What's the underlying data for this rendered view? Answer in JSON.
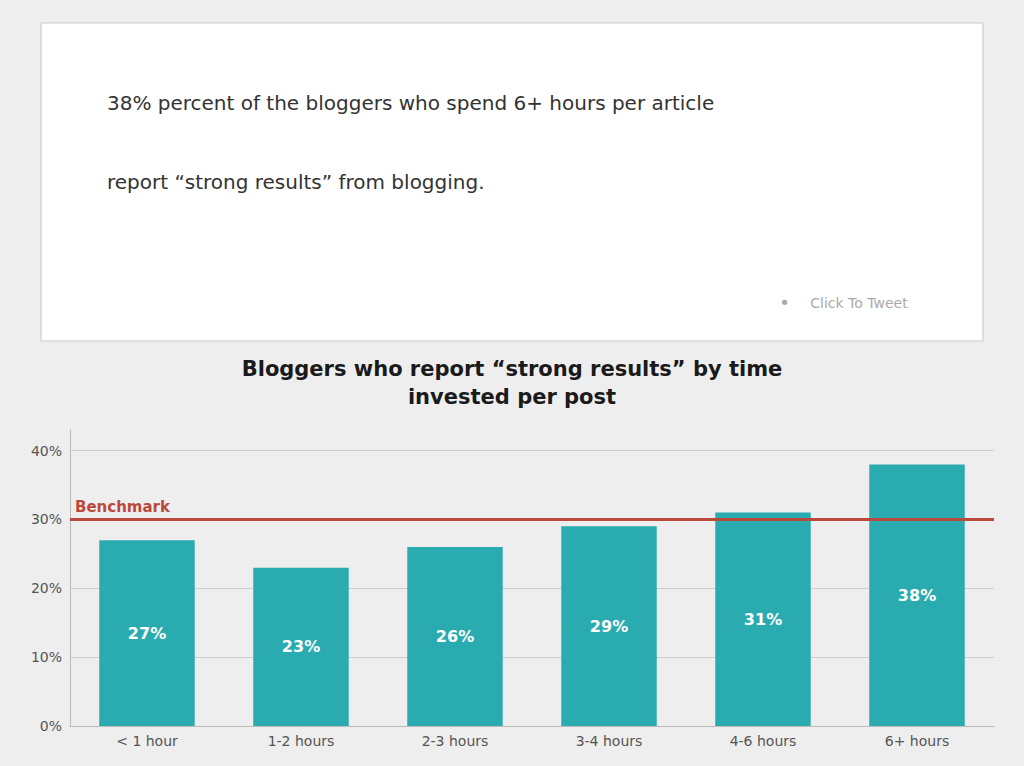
{
  "chart_data": {
    "type": "bar",
    "title": "Bloggers who report “strong results” by time\ninvested per post",
    "categories": [
      "< 1 hour",
      "1-2 hours",
      "2-3 hours",
      "3-4 hours",
      "4-6 hours",
      "6+ hours"
    ],
    "values": [
      27,
      23,
      26,
      29,
      31,
      38
    ],
    "value_labels": [
      "27%",
      "23%",
      "26%",
      "29%",
      "31%",
      "38%"
    ],
    "data_labels": true,
    "color": "#2AABB0",
    "ylim": [
      0,
      43
    ],
    "yticks": [
      {
        "value": 0,
        "label": "0%"
      },
      {
        "value": 10,
        "label": "10%"
      },
      {
        "value": 20,
        "label": "20%"
      },
      {
        "value": 30,
        "label": "30%"
      },
      {
        "value": 40,
        "label": "40%"
      }
    ],
    "grid": true,
    "annotations": [
      {
        "text": "38% percent of the bloggers who spend 6+ hours per article"
      },
      {
        "text": "report “strong results” from blogging."
      },
      {
        "text": "•",
        "color": "#aaaaaa"
      },
      {
        "text": "Click To Tweet",
        "color": "#aaaaaa"
      },
      {
        "text": "Benchmark",
        "y": 30,
        "color": "#B94A3B"
      }
    ]
  }
}
